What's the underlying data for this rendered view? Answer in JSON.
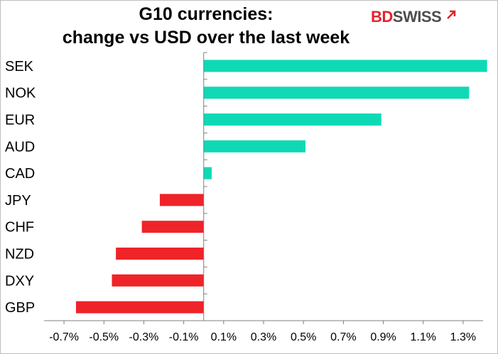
{
  "header": {
    "title_line1": "G10 currencies:",
    "title_line2": "change vs USD over the last week",
    "logo_part1": "BD",
    "logo_part2": "SWISS"
  },
  "colors": {
    "positive": "#0fd9b5",
    "negative": "#ee2428",
    "axis": "#7f7f7f"
  },
  "chart_data": {
    "type": "bar",
    "orientation": "horizontal",
    "title": "G10 currencies: change vs USD over the last week",
    "categories": [
      "SEK",
      "NOK",
      "EUR",
      "AUD",
      "CAD",
      "JPY",
      "CHF",
      "NZD",
      "DXY",
      "GBP"
    ],
    "values": [
      1.42,
      1.33,
      0.89,
      0.51,
      0.04,
      -0.22,
      -0.31,
      -0.44,
      -0.46,
      -0.64
    ],
    "xlim": [
      -0.8,
      1.4
    ],
    "xticks": [
      -0.7,
      -0.5,
      -0.3,
      -0.1,
      0.1,
      0.3,
      0.5,
      0.7,
      0.9,
      1.1,
      1.3
    ],
    "xtick_labels": [
      "-0.7%",
      "-0.5%",
      "-0.3%",
      "-0.1%",
      "0.1%",
      "0.3%",
      "0.5%",
      "0.7%",
      "0.9%",
      "1.1%",
      "1.3%"
    ],
    "xlabel": "",
    "ylabel": "",
    "grid": false,
    "legend": "none"
  }
}
